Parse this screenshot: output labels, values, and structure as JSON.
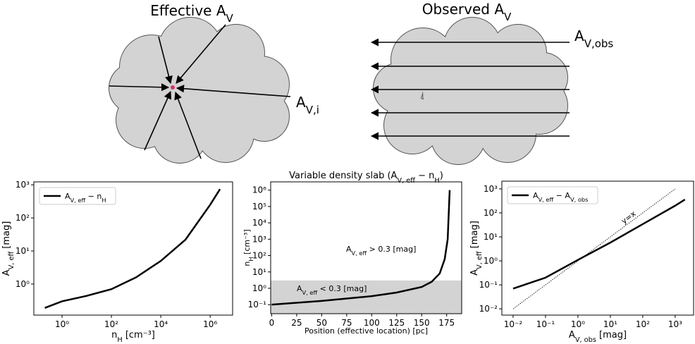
{
  "diagrams": {
    "left": {
      "title": [
        {
          "text": "Effective A"
        },
        {
          "sub": "V"
        }
      ],
      "label": [
        {
          "text": "A"
        },
        {
          "sub": "V,i"
        }
      ]
    },
    "right": {
      "title": [
        {
          "text": "Observed A"
        },
        {
          "sub": "V"
        }
      ],
      "label": [
        {
          "text": "A"
        },
        {
          "sub": "V,obs"
        }
      ]
    }
  },
  "chart_data": [
    {
      "type": "line",
      "xscale": "log",
      "yscale": "log",
      "xlim": [
        0.072,
        8100000
      ],
      "ylim": [
        0.115,
        1230
      ],
      "xticks": [
        {
          "value": 1,
          "label": "10⁰"
        },
        {
          "value": 100,
          "label": "10²"
        },
        {
          "value": 10000,
          "label": "10⁴"
        },
        {
          "value": 1000000,
          "label": "10⁶"
        }
      ],
      "yticks": [
        {
          "value": 1,
          "label": "10⁰"
        },
        {
          "value": 10,
          "label": "10¹"
        },
        {
          "value": 100,
          "label": "10²"
        },
        {
          "value": 1000,
          "label": "10³"
        }
      ],
      "xlabel": [
        {
          "text": "n"
        },
        {
          "sub": "H"
        },
        {
          "text": " [cm⁻³]"
        }
      ],
      "ylabel": [
        {
          "text": "A"
        },
        {
          "sub": "V, eff"
        },
        {
          "text": " [mag]"
        }
      ],
      "legend": "upper left",
      "series": [
        {
          "name": [
            {
              "text": "A"
            },
            {
              "sub": "V, eff"
            },
            {
              "text": " − n"
            },
            {
              "sub": "H"
            }
          ],
          "color": "#000000",
          "x": [
            0.2,
            1,
            10,
            100,
            1000,
            10000,
            100000,
            1000000,
            2500000
          ],
          "values": [
            0.19,
            0.3,
            0.44,
            0.7,
            1.6,
            5,
            22,
            250,
            740
          ]
        }
      ]
    },
    {
      "type": "line",
      "xscale": "linear",
      "yscale": "log",
      "title": [
        {
          "text": "Variable density slab (A"
        },
        {
          "sub": "V, eff"
        },
        {
          "text": " − n"
        },
        {
          "sub": "H"
        },
        {
          "text": ")"
        }
      ],
      "xlim": [
        -1,
        190
      ],
      "ylim": [
        0.028,
        3200000
      ],
      "xticks": [
        0,
        25,
        50,
        75,
        100,
        125,
        150,
        175
      ],
      "yticks": [
        {
          "value": 0.1,
          "label": "10⁻¹"
        },
        {
          "value": 1,
          "label": "10⁰"
        },
        {
          "value": 10,
          "label": "10¹"
        },
        {
          "value": 100,
          "label": "10²"
        },
        {
          "value": 1000,
          "label": "10³"
        },
        {
          "value": 10000,
          "label": "10⁴"
        },
        {
          "value": 100000,
          "label": "10⁵"
        },
        {
          "value": 1000000,
          "label": "10⁶"
        }
      ],
      "xlabel": [
        {
          "text": "Position (effective location) [pc]"
        }
      ],
      "ylabel": [
        {
          "text": "n"
        },
        {
          "sub": "H"
        },
        {
          "text": " [cm⁻³]"
        }
      ],
      "shade_ymax": 3,
      "shade_color": "#d3d3d3",
      "annotations": [
        [
          {
            "text": "A"
          },
          {
            "sub": "V, eff"
          },
          {
            "text": " > 0.3 [mag]"
          }
        ],
        [
          {
            "text": "A"
          },
          {
            "sub": "V, eff"
          },
          {
            "text": " < 0.3 [mag]"
          }
        ]
      ],
      "series": [
        {
          "color": "#000000",
          "x": [
            0,
            50,
            100,
            125,
            150,
            160,
            168,
            173,
            176,
            178
          ],
          "values": [
            0.1,
            0.17,
            0.33,
            0.55,
            1.2,
            2.5,
            8,
            60,
            1000,
            1000000
          ]
        }
      ]
    },
    {
      "type": "line",
      "xscale": "log",
      "yscale": "log",
      "xlim": [
        0.0045,
        3700
      ],
      "ylim": [
        0.0055,
        2100
      ],
      "xticks": [
        {
          "value": 0.01,
          "label": "10⁻²"
        },
        {
          "value": 0.1,
          "label": "10⁻¹"
        },
        {
          "value": 1,
          "label": "10⁰"
        },
        {
          "value": 10,
          "label": "10¹"
        },
        {
          "value": 100,
          "label": "10²"
        },
        {
          "value": 1000,
          "label": "10³"
        }
      ],
      "yticks": [
        {
          "value": 0.01,
          "label": "10⁻²"
        },
        {
          "value": 0.1,
          "label": "10⁻¹"
        },
        {
          "value": 1,
          "label": "10⁰"
        },
        {
          "value": 10,
          "label": "10¹"
        },
        {
          "value": 100,
          "label": "10²"
        },
        {
          "value": 1000,
          "label": "10³"
        }
      ],
      "xlabel": [
        {
          "text": "A"
        },
        {
          "sub": "V, obs"
        },
        {
          "text": " [mag]"
        }
      ],
      "ylabel": [
        {
          "text": "A"
        },
        {
          "sub": "V, eff"
        },
        {
          "text": " [mag]"
        }
      ],
      "legend": "upper left",
      "reference_line": {
        "x": [
          0.01,
          1000
        ],
        "values": [
          0.01,
          1000
        ],
        "label": "y=x"
      },
      "series": [
        {
          "name": [
            {
              "text": "A"
            },
            {
              "sub": "V, eff"
            },
            {
              "text": " − A"
            },
            {
              "sub": "V, obs"
            }
          ],
          "color": "#000000",
          "x": [
            0.01,
            0.1,
            1,
            10,
            100,
            1000,
            2000
          ],
          "values": [
            0.07,
            0.2,
            1.1,
            5.8,
            34,
            200,
            360
          ]
        }
      ]
    }
  ]
}
